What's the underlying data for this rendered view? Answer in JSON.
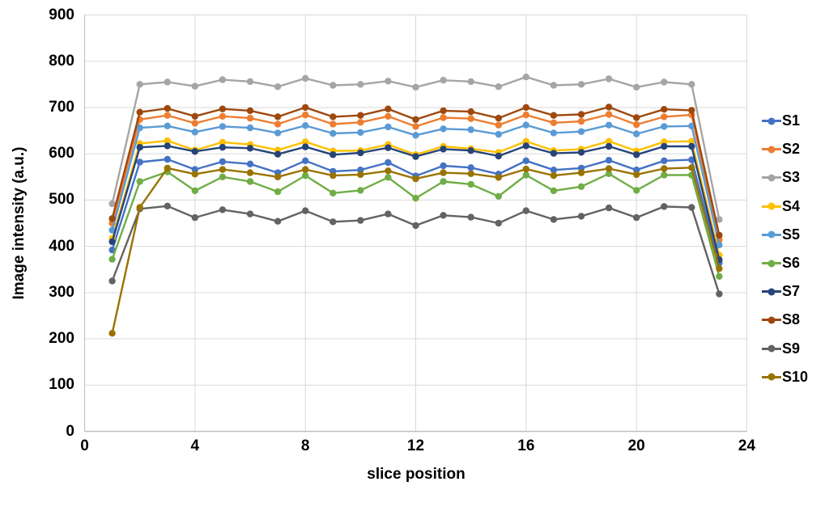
{
  "chart_data": {
    "type": "line",
    "title": "",
    "xlabel": "slice position",
    "ylabel": "Image intensity (a.u.)",
    "xlim": [
      0,
      24
    ],
    "ylim": [
      0,
      900
    ],
    "xticks": [
      0,
      4,
      8,
      12,
      16,
      20,
      24
    ],
    "yticks": [
      0,
      100,
      200,
      300,
      400,
      500,
      600,
      700,
      800,
      900
    ],
    "grid": true,
    "legend_position": "right",
    "marker": "circle",
    "x": [
      1,
      2,
      3,
      4,
      5,
      6,
      7,
      8,
      9,
      10,
      11,
      12,
      13,
      14,
      15,
      16,
      17,
      18,
      19,
      20,
      21,
      22,
      23
    ],
    "series": [
      {
        "name": "S1",
        "color": "#4472C4",
        "values": [
          392,
          582,
          588,
          566,
          583,
          578,
          559,
          585,
          562,
          565,
          581,
          552,
          574,
          570,
          556,
          585,
          565,
          569,
          586,
          565,
          585,
          587,
          364
        ]
      },
      {
        "name": "S2",
        "color": "#ED7D31",
        "values": [
          450,
          674,
          683,
          666,
          681,
          677,
          664,
          684,
          664,
          668,
          681,
          659,
          678,
          676,
          662,
          684,
          667,
          670,
          685,
          663,
          680,
          684,
          414
        ]
      },
      {
        "name": "S3",
        "color": "#A5A5A5",
        "values": [
          492,
          750,
          755,
          746,
          760,
          756,
          745,
          763,
          748,
          750,
          757,
          744,
          759,
          756,
          745,
          766,
          748,
          750,
          762,
          744,
          755,
          750,
          458
        ]
      },
      {
        "name": "S4",
        "color": "#FFC000",
        "values": [
          417,
          622,
          628,
          608,
          625,
          620,
          608,
          626,
          606,
          607,
          620,
          598,
          616,
          611,
          603,
          627,
          607,
          610,
          627,
          606,
          626,
          627,
          381
        ]
      },
      {
        "name": "S5",
        "color": "#5B9BD5",
        "values": [
          435,
          656,
          660,
          647,
          659,
          656,
          645,
          661,
          644,
          646,
          658,
          640,
          654,
          652,
          642,
          662,
          645,
          648,
          662,
          643,
          659,
          660,
          403
        ]
      },
      {
        "name": "S6",
        "color": "#70AD47",
        "values": [
          372,
          540,
          561,
          520,
          550,
          540,
          518,
          553,
          515,
          521,
          549,
          504,
          540,
          534,
          508,
          554,
          520,
          529,
          557,
          521,
          554,
          554,
          335
        ]
      },
      {
        "name": "S7",
        "color": "#264478",
        "values": [
          410,
          614,
          617,
          605,
          614,
          612,
          599,
          615,
          598,
          602,
          613,
          594,
          610,
          607,
          595,
          617,
          601,
          603,
          616,
          598,
          616,
          616,
          371
        ]
      },
      {
        "name": "S8",
        "color": "#9E480E",
        "values": [
          460,
          690,
          698,
          681,
          697,
          693,
          680,
          700,
          680,
          683,
          697,
          674,
          693,
          691,
          677,
          700,
          683,
          685,
          701,
          678,
          696,
          694,
          424
        ]
      },
      {
        "name": "S9",
        "color": "#636363",
        "values": [
          325,
          481,
          487,
          462,
          479,
          470,
          454,
          477,
          453,
          456,
          470,
          445,
          467,
          463,
          450,
          477,
          458,
          465,
          483,
          462,
          486,
          484,
          297
        ]
      },
      {
        "name": "S10",
        "color": "#997300",
        "values": [
          212,
          484,
          569,
          556,
          566,
          559,
          550,
          566,
          553,
          555,
          563,
          546,
          559,
          557,
          549,
          567,
          553,
          559,
          568,
          555,
          568,
          570,
          352
        ]
      }
    ],
    "colors": {
      "gridline": "#D9D9D9",
      "axis_line": "#BFBFBF",
      "tick_text": "#000000"
    }
  }
}
